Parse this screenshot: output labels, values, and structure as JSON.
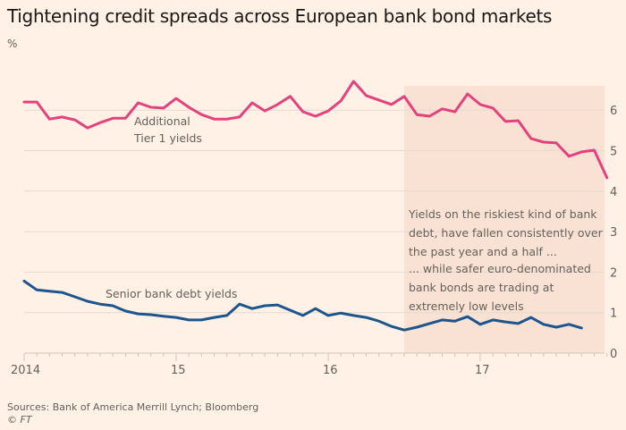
{
  "chart_data": {
    "type": "line",
    "title": "Tightening credit spreads across European bank bond markets",
    "ylabel": "%",
    "xlabel": "",
    "ylim": [
      0,
      6.6
    ],
    "yticks": [
      0,
      1,
      2,
      3,
      4,
      5,
      6
    ],
    "ytick_labels": [
      "0",
      "1",
      "2",
      "3",
      "4",
      "5",
      "6"
    ],
    "xlim": [
      2014.0,
      2017.85
    ],
    "xticks": [
      2014,
      2015,
      2016,
      2017
    ],
    "xtick_labels": [
      "2014",
      "15",
      "16",
      "17"
    ],
    "grid": true,
    "y_axis_side": "right",
    "highlight_range": [
      2016.5,
      2017.85
    ],
    "series": [
      {
        "name": "Additional Tier 1 yields",
        "label_lines": [
          "Additional",
          "Tier 1 yields"
        ],
        "color": "#e5427d",
        "x_start": 2014.0,
        "x_step_months": 1,
        "values": [
          6.2,
          6.2,
          5.78,
          5.83,
          5.76,
          5.56,
          5.69,
          5.8,
          5.8,
          6.18,
          6.07,
          6.05,
          6.29,
          6.07,
          5.89,
          5.78,
          5.78,
          5.83,
          6.18,
          5.98,
          6.14,
          6.34,
          5.96,
          5.85,
          5.98,
          6.23,
          6.71,
          6.36,
          6.25,
          6.14,
          6.34,
          5.89,
          5.85,
          6.03,
          5.96,
          6.4,
          6.14,
          6.05,
          5.72,
          5.74,
          5.3,
          5.21,
          5.19,
          4.86,
          4.97,
          5.01,
          4.33
        ]
      },
      {
        "name": "Senior bank debt yields",
        "label_lines": [
          "Senior bank debt yields"
        ],
        "color": "#1e558c",
        "x_start": 2014.0,
        "x_step_months": 1,
        "values": [
          1.78,
          1.56,
          1.53,
          1.5,
          1.39,
          1.28,
          1.21,
          1.17,
          1.04,
          0.97,
          0.95,
          0.91,
          0.88,
          0.82,
          0.82,
          0.88,
          0.93,
          1.21,
          1.1,
          1.17,
          1.19,
          1.06,
          0.93,
          1.1,
          0.93,
          0.99,
          0.93,
          0.88,
          0.79,
          0.66,
          0.57,
          0.64,
          0.73,
          0.82,
          0.79,
          0.9,
          0.71,
          0.82,
          0.77,
          0.73,
          0.88,
          0.71,
          0.64,
          0.71,
          0.62
        ]
      }
    ],
    "annotations": [
      {
        "name": "atl-annotation",
        "lines": [
          "Yields on the riskiest kind of bank",
          "debt, have fallen consistently over",
          "the past year and a half ..."
        ]
      },
      {
        "name": "senior-annotation",
        "lines": [
          "... while safer euro-denominated",
          "bank bonds are trading at",
          "extremely low levels"
        ]
      }
    ]
  },
  "header": {
    "title": "Tightening credit spreads across European bank bond markets",
    "unit": "%"
  },
  "footer": {
    "source": "Sources: Bank of America Merrill Lynch; Bloomberg",
    "copyright": "© FT"
  },
  "colors": {
    "background": "#fff1e5",
    "highlight": "#f9e2d4",
    "grid": "#e6d9ce",
    "axis_text": "#66605c"
  }
}
